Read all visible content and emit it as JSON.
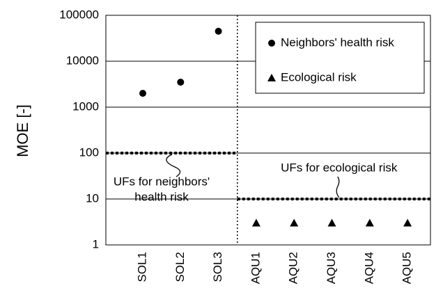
{
  "chart_data": {
    "type": "scatter",
    "y_label": "MOE [-]",
    "categories": [
      "SOL1",
      "SOL2",
      "SOL3",
      "AQU1",
      "AQU2",
      "AQU3",
      "AQU4",
      "AQU5"
    ],
    "series": [
      {
        "name": "Neighbors' health risk",
        "color": "#000000",
        "marker": "circle",
        "values": [
          2000,
          3500,
          45000,
          null,
          null,
          null,
          null,
          null
        ]
      },
      {
        "name": "Ecological risk",
        "color": "#000000",
        "marker": "triangle",
        "values": [
          null,
          null,
          null,
          3,
          3,
          3,
          3,
          3
        ]
      }
    ],
    "ylim": [
      1,
      100000
    ],
    "yticks": [
      1,
      10,
      100,
      1000,
      10000,
      100000
    ],
    "log_y": true,
    "grid": true,
    "legend": "upper right",
    "thresholds": [
      {
        "value": 100,
        "lines": [
          "UFs for neighbors'",
          "health risk"
        ]
      },
      {
        "value": 10,
        "lines": [
          "UFs for ecological risk"
        ]
      }
    ]
  }
}
